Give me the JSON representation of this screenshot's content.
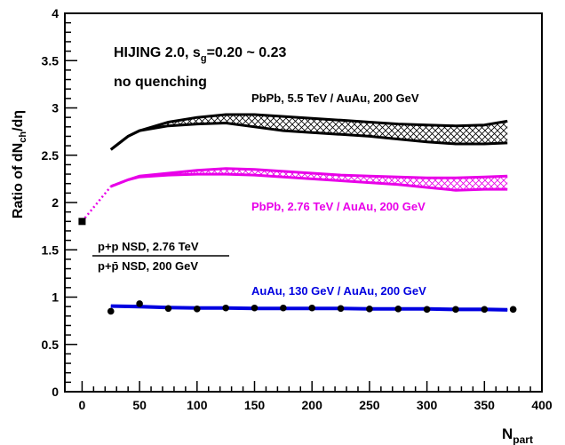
{
  "chart_data": {
    "type": "line",
    "title": "",
    "xlabel": "N",
    "xlabel_sub": "part",
    "ylabel": "Ratio of dN",
    "ylabel_sub": "ch",
    "ylabel_tail": "/dη",
    "xlim": [
      -15,
      400
    ],
    "ylim": [
      0,
      4
    ],
    "x_ticks": [
      0,
      50,
      100,
      150,
      200,
      250,
      300,
      350,
      400
    ],
    "y_ticks": [
      0,
      0.5,
      1,
      1.5,
      2,
      2.5,
      3,
      3.5,
      4
    ],
    "grid": false,
    "annotations": {
      "model_line1_main": "HIJING 2.0, s",
      "model_line1_sub": "g",
      "model_line1_tail": "=0.20 ~ 0.23",
      "model_line2": "no quenching",
      "pp_numerator": "p+p NSD, 2.76 TeV",
      "pp_denominator": "p+p̄ NSD, 200 GeV"
    },
    "series": [
      {
        "name": "PbPb, 5.5 TeV / AuAu, 200 GeV",
        "color": "#000000",
        "kind": "band",
        "x": [
          25,
          40,
          50,
          75,
          100,
          125,
          150,
          175,
          200,
          225,
          250,
          275,
          300,
          325,
          350,
          370
        ],
        "upper": [
          2.56,
          2.7,
          2.76,
          2.85,
          2.9,
          2.93,
          2.93,
          2.91,
          2.89,
          2.87,
          2.85,
          2.83,
          2.82,
          2.81,
          2.82,
          2.86
        ],
        "lower": [
          2.56,
          2.7,
          2.76,
          2.81,
          2.83,
          2.84,
          2.8,
          2.76,
          2.74,
          2.72,
          2.7,
          2.67,
          2.64,
          2.62,
          2.62,
          2.63
        ]
      },
      {
        "name": "PbPb, 2.76 TeV / AuAu, 200 GeV",
        "color": "#e800e8",
        "kind": "band",
        "x": [
          25,
          40,
          50,
          75,
          100,
          125,
          150,
          175,
          200,
          225,
          250,
          275,
          300,
          325,
          350,
          370
        ],
        "upper": [
          2.17,
          2.24,
          2.28,
          2.31,
          2.34,
          2.36,
          2.35,
          2.33,
          2.31,
          2.29,
          2.28,
          2.27,
          2.26,
          2.26,
          2.27,
          2.28
        ],
        "lower": [
          2.17,
          2.24,
          2.27,
          2.29,
          2.3,
          2.3,
          2.29,
          2.27,
          2.25,
          2.23,
          2.21,
          2.19,
          2.16,
          2.13,
          2.14,
          2.14
        ]
      },
      {
        "name": "AuAu, 130 GeV / AuAu, 200 GeV",
        "color": "#0000e0",
        "kind": "band",
        "x": [
          25,
          50,
          75,
          100,
          125,
          150,
          175,
          200,
          225,
          250,
          275,
          300,
          325,
          350,
          370
        ],
        "upper": [
          0.91,
          0.905,
          0.895,
          0.89,
          0.89,
          0.885,
          0.885,
          0.885,
          0.885,
          0.88,
          0.88,
          0.88,
          0.875,
          0.875,
          0.87
        ],
        "lower": [
          0.9,
          0.895,
          0.885,
          0.88,
          0.88,
          0.875,
          0.875,
          0.875,
          0.875,
          0.87,
          0.87,
          0.87,
          0.865,
          0.865,
          0.86
        ]
      },
      {
        "kind": "extrapolation",
        "color": "#e800e8",
        "x": [
          0,
          25
        ],
        "y": [
          1.8,
          2.17
        ]
      },
      {
        "kind": "points",
        "color": "#000000",
        "x": [
          25,
          50,
          75,
          100,
          125,
          150,
          175,
          200,
          225,
          250,
          275,
          300,
          325,
          350,
          375
        ],
        "y": [
          0.85,
          0.93,
          0.88,
          0.875,
          0.885,
          0.885,
          0.885,
          0.885,
          0.88,
          0.875,
          0.875,
          0.87,
          0.87,
          0.87,
          0.87
        ]
      },
      {
        "kind": "square-point",
        "color": "#000000",
        "x": [
          0
        ],
        "y": [
          1.8
        ]
      }
    ]
  }
}
